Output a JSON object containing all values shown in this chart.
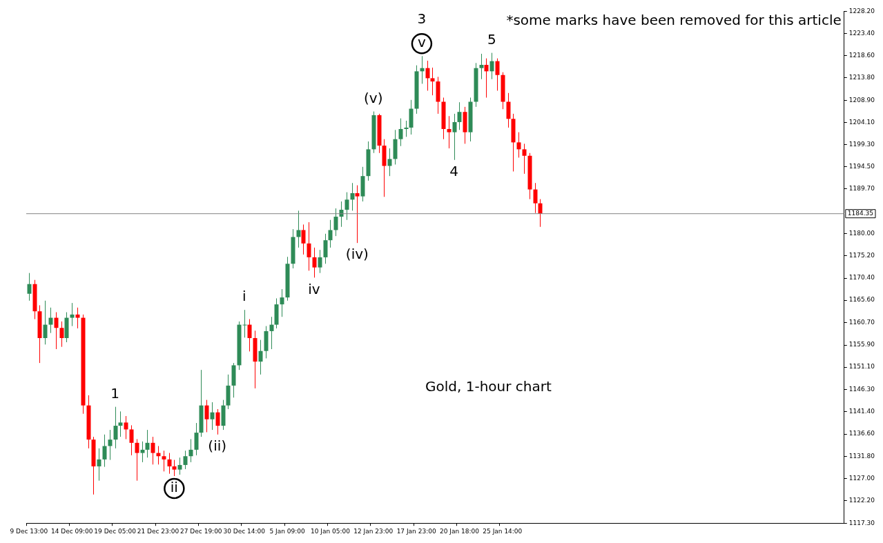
{
  "chart_data": {
    "type": "candlestick",
    "title": "Gold, 1-hour chart",
    "annotations": [
      "*some marks have been removed for this article",
      "1",
      "ii",
      "(ii)",
      "i",
      "iv",
      "(iv)",
      "(v)",
      "v",
      "3",
      "4",
      "5"
    ],
    "categories": [
      "9 Dec 13:00",
      null,
      null,
      null,
      null,
      null,
      null,
      null,
      "14 Dec 09:00",
      null,
      null,
      null,
      null,
      null,
      null,
      null,
      "19 Dec 05:00",
      null,
      null,
      null,
      null,
      null,
      null,
      null,
      "21 Dec 23:00",
      null,
      null,
      null,
      null,
      null,
      null,
      null,
      "27 Dec 19:00",
      null,
      null,
      null,
      null,
      null,
      null,
      null,
      "30 Dec 14:00",
      null,
      null,
      null,
      null,
      null,
      null,
      null,
      "5 Jan 09:00",
      null,
      null,
      null,
      null,
      null,
      null,
      null,
      "10 Jan 05:00",
      null,
      null,
      null,
      null,
      null,
      null,
      null,
      "12 Jan 23:00",
      null,
      null,
      null,
      null,
      null,
      null,
      null,
      "17 Jan 23:00",
      null,
      null,
      null,
      null,
      null,
      null,
      null,
      "20 Jan 18:00",
      null,
      null,
      null,
      null,
      null,
      null,
      null,
      "25 Jan 14:00",
      null,
      null,
      null,
      null,
      null,
      null,
      null,
      null,
      null,
      null,
      null,
      null,
      null,
      null,
      null,
      null,
      null,
      null,
      null,
      null,
      null,
      null,
      null,
      null,
      null,
      null,
      null,
      null,
      null,
      null,
      null,
      null,
      null,
      null,
      null,
      null,
      null,
      null,
      null,
      null,
      null,
      null,
      null,
      null,
      null,
      null,
      null,
      null,
      null,
      null,
      null,
      null,
      null,
      null,
      null,
      null,
      null,
      null,
      null,
      null,
      null,
      null,
      null
    ],
    "ohlc": [
      [
        1167.0,
        1171.5,
        1165.5,
        1169.1
      ],
      [
        1169.1,
        1170.0,
        1161.5,
        1163.2
      ],
      [
        1163.2,
        1164.5,
        1152.0,
        1157.4
      ],
      [
        1157.4,
        1165.5,
        1156.0,
        1160.3
      ],
      [
        1160.3,
        1164.0,
        1158.5,
        1161.8
      ],
      [
        1161.8,
        1163.0,
        1155.0,
        1159.6
      ],
      [
        1159.6,
        1161.0,
        1155.5,
        1157.4
      ],
      [
        1157.4,
        1163.0,
        1156.5,
        1161.8
      ],
      [
        1161.8,
        1165.0,
        1160.0,
        1162.5
      ],
      [
        1162.5,
        1164.0,
        1159.5,
        1161.8
      ],
      [
        1161.8,
        1162.5,
        1141.0,
        1142.8
      ],
      [
        1142.8,
        1145.0,
        1133.5,
        1135.4
      ],
      [
        1135.4,
        1136.0,
        1123.5,
        1129.6
      ],
      [
        1129.6,
        1133.5,
        1126.5,
        1131.1
      ],
      [
        1131.1,
        1136.5,
        1129.5,
        1134.0
      ],
      [
        1134.0,
        1137.5,
        1131.0,
        1135.4
      ],
      [
        1135.4,
        1142.5,
        1133.5,
        1138.4
      ],
      [
        1138.4,
        1141.5,
        1136.0,
        1139.1
      ],
      [
        1139.1,
        1140.5,
        1135.5,
        1137.6
      ],
      [
        1137.6,
        1138.5,
        1132.0,
        1134.7
      ],
      [
        1134.7,
        1135.5,
        1126.5,
        1132.5
      ],
      [
        1132.5,
        1135.0,
        1130.5,
        1133.2
      ],
      [
        1133.2,
        1137.5,
        1131.5,
        1134.7
      ],
      [
        1134.7,
        1136.0,
        1130.0,
        1132.5
      ],
      [
        1132.5,
        1134.0,
        1130.0,
        1131.8
      ],
      [
        1131.8,
        1133.0,
        1128.5,
        1131.1
      ],
      [
        1131.1,
        1132.5,
        1128.0,
        1129.6
      ],
      [
        1129.6,
        1131.0,
        1127.5,
        1128.9
      ],
      [
        1128.9,
        1131.5,
        1127.8,
        1129.9
      ],
      [
        1129.9,
        1133.0,
        1129.0,
        1131.8
      ],
      [
        1131.8,
        1135.5,
        1130.5,
        1133.2
      ],
      [
        1133.2,
        1139.0,
        1132.0,
        1136.9
      ],
      [
        1136.9,
        1150.5,
        1136.0,
        1142.8
      ],
      [
        1142.8,
        1144.0,
        1137.0,
        1139.8
      ],
      [
        1139.8,
        1143.5,
        1137.5,
        1141.3
      ],
      [
        1141.3,
        1142.0,
        1136.5,
        1138.4
      ],
      [
        1138.4,
        1144.0,
        1137.5,
        1142.8
      ],
      [
        1142.8,
        1149.5,
        1142.0,
        1147.1
      ],
      [
        1147.1,
        1152.0,
        1144.5,
        1151.5
      ],
      [
        1151.5,
        1161.0,
        1150.5,
        1160.3
      ],
      [
        1160.3,
        1163.5,
        1157.5,
        1160.3
      ],
      [
        1160.3,
        1161.5,
        1154.5,
        1157.4
      ],
      [
        1157.4,
        1159.0,
        1146.5,
        1152.3
      ],
      [
        1152.3,
        1157.0,
        1149.5,
        1154.6
      ],
      [
        1154.6,
        1160.0,
        1153.0,
        1158.9
      ],
      [
        1158.9,
        1162.0,
        1155.0,
        1160.3
      ],
      [
        1160.3,
        1166.0,
        1159.5,
        1164.7
      ],
      [
        1164.7,
        1168.0,
        1162.0,
        1166.2
      ],
      [
        1166.2,
        1175.0,
        1165.5,
        1173.5
      ],
      [
        1173.5,
        1181.0,
        1172.5,
        1179.3
      ],
      [
        1179.3,
        1185.0,
        1177.0,
        1180.8
      ],
      [
        1180.8,
        1182.0,
        1175.5,
        1177.9
      ],
      [
        1177.9,
        1182.5,
        1172.0,
        1174.9
      ],
      [
        1174.9,
        1177.0,
        1170.5,
        1172.7
      ],
      [
        1172.7,
        1176.5,
        1171.5,
        1174.9
      ],
      [
        1174.9,
        1180.0,
        1173.5,
        1178.6
      ],
      [
        1178.6,
        1183.0,
        1177.0,
        1180.8
      ],
      [
        1180.8,
        1185.5,
        1179.5,
        1183.7
      ],
      [
        1183.7,
        1187.0,
        1181.5,
        1185.2
      ],
      [
        1185.2,
        1189.0,
        1183.0,
        1187.4
      ],
      [
        1187.4,
        1191.0,
        1185.0,
        1188.8
      ],
      [
        1188.8,
        1190.5,
        1178.0,
        1188.1
      ],
      [
        1188.1,
        1194.5,
        1187.0,
        1192.5
      ],
      [
        1192.5,
        1200.0,
        1191.5,
        1198.3
      ],
      [
        1198.3,
        1206.5,
        1197.5,
        1205.7
      ],
      [
        1205.7,
        1206.0,
        1197.5,
        1199.1
      ],
      [
        1199.1,
        1200.5,
        1188.0,
        1194.7
      ],
      [
        1194.7,
        1198.5,
        1192.5,
        1196.2
      ],
      [
        1196.2,
        1202.5,
        1195.0,
        1200.5
      ],
      [
        1200.5,
        1205.0,
        1199.0,
        1202.7
      ],
      [
        1202.7,
        1204.5,
        1201.0,
        1203.0
      ],
      [
        1203.0,
        1209.0,
        1201.5,
        1207.1
      ],
      [
        1207.1,
        1216.5,
        1206.0,
        1215.2
      ],
      [
        1215.2,
        1218.5,
        1212.5,
        1215.9
      ],
      [
        1215.9,
        1217.5,
        1211.0,
        1213.7
      ],
      [
        1213.7,
        1216.0,
        1210.0,
        1213.0
      ],
      [
        1213.0,
        1214.0,
        1206.0,
        1208.6
      ],
      [
        1208.6,
        1209.5,
        1200.5,
        1202.7
      ],
      [
        1202.7,
        1205.5,
        1198.5,
        1202.0
      ],
      [
        1202.0,
        1206.0,
        1196.0,
        1204.2
      ],
      [
        1204.2,
        1208.5,
        1202.5,
        1206.4
      ],
      [
        1206.4,
        1207.5,
        1199.5,
        1202.0
      ],
      [
        1202.0,
        1209.5,
        1200.0,
        1208.6
      ],
      [
        1208.6,
        1217.0,
        1207.5,
        1215.9
      ],
      [
        1215.9,
        1219.0,
        1213.5,
        1216.6
      ],
      [
        1216.6,
        1218.0,
        1209.5,
        1215.2
      ],
      [
        1215.2,
        1219.2,
        1213.5,
        1217.4
      ],
      [
        1217.4,
        1218.0,
        1211.0,
        1214.4
      ],
      [
        1214.4,
        1215.0,
        1207.0,
        1208.6
      ],
      [
        1208.6,
        1210.5,
        1203.0,
        1204.9
      ],
      [
        1204.9,
        1206.0,
        1193.5,
        1199.8
      ],
      [
        1199.8,
        1202.0,
        1196.5,
        1198.3
      ],
      [
        1198.3,
        1199.5,
        1193.0,
        1196.9
      ],
      [
        1196.9,
        1197.5,
        1187.5,
        1189.6
      ],
      [
        1189.6,
        1191.0,
        1184.5,
        1186.6
      ],
      [
        1186.6,
        1187.5,
        1181.5,
        1184.35
      ],
      null,
      null,
      null,
      null,
      null,
      null,
      null,
      null,
      null,
      null,
      null,
      null,
      null,
      null,
      null,
      null,
      null,
      null,
      null,
      null,
      null,
      null,
      null,
      null,
      null,
      null,
      null,
      null,
      null,
      null,
      null,
      null,
      null,
      null,
      null,
      null,
      null,
      null,
      null,
      null,
      null,
      null,
      null,
      null,
      null,
      null,
      null,
      null,
      null,
      null,
      null,
      null,
      null,
      null,
      null,
      null
    ],
    "ylim": [
      1117.3,
      1228.2
    ],
    "yticks": [
      {
        "value": 1117.3,
        "label": "1117.30"
      },
      {
        "value": 1122.2,
        "label": "1122.20"
      },
      {
        "value": 1127.0,
        "label": "1127.00"
      },
      {
        "value": 1131.8,
        "label": "1131.80"
      },
      {
        "value": 1136.6,
        "label": "1136.60"
      },
      {
        "value": 1141.4,
        "label": "1141.40"
      },
      {
        "value": 1146.3,
        "label": "1146.30"
      },
      {
        "value": 1151.1,
        "label": "1151.10"
      },
      {
        "value": 1155.9,
        "label": "1155.90"
      },
      {
        "value": 1160.7,
        "label": "1160.70"
      },
      {
        "value": 1165.6,
        "label": "1165.60"
      },
      {
        "value": 1170.4,
        "label": "1170.40"
      },
      {
        "value": 1175.2,
        "label": "1175.20"
      },
      {
        "value": 1180.0,
        "label": "1180.00"
      },
      {
        "value": 1189.7,
        "label": "1189.70"
      },
      {
        "value": 1194.5,
        "label": "1194.50"
      },
      {
        "value": 1199.3,
        "label": "1199.30"
      },
      {
        "value": 1204.1,
        "label": "1204.10"
      },
      {
        "value": 1208.9,
        "label": "1208.90"
      },
      {
        "value": 1213.8,
        "label": "1213.80"
      },
      {
        "value": 1218.6,
        "label": "1218.60"
      },
      {
        "value": 1223.4,
        "label": "1223.40"
      },
      {
        "value": 1228.2,
        "label": "1228.20"
      }
    ],
    "ref_lines": [
      {
        "axis": "y",
        "value": 1184.35,
        "label": "1184.35",
        "color": "#808080"
      }
    ]
  }
}
